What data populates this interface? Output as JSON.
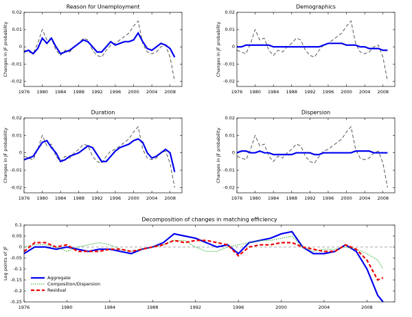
{
  "chart_data": [
    {
      "type": "line",
      "title": "Reason for Unemployment",
      "ylabel": "Changes in JF probability",
      "x": [
        1976,
        1977,
        1978,
        1979,
        1980,
        1981,
        1982,
        1983,
        1984,
        1985,
        1986,
        1987,
        1988,
        1989,
        1990,
        1991,
        1992,
        1993,
        1994,
        1995,
        1996,
        1997,
        1998,
        1999,
        2000,
        2001,
        2002,
        2003,
        2004,
        2005,
        2006,
        2007,
        2008,
        2009
      ],
      "xlim": [
        1976,
        2010.6
      ],
      "xticks": [
        1976,
        1980,
        1984,
        1988,
        1992,
        1996,
        2000,
        2004,
        2008
      ],
      "ylim": [
        -0.023,
        0.02
      ],
      "yticks": [
        -0.02,
        -0.01,
        0,
        0.01,
        0.02
      ],
      "series": [
        {
          "color": "#555555",
          "linestyle": "dashed",
          "linewidth": 1,
          "values": [
            -0.002,
            -0.003,
            -0.004,
            0.002,
            0.01,
            0.004,
            0.005,
            -0.002,
            -0.005,
            -0.002,
            -0.003,
            0.0,
            0.002,
            0.005,
            0.004,
            -0.002,
            -0.005,
            -0.006,
            -0.002,
            0.001,
            0.002,
            0.004,
            0.006,
            0.008,
            0.012,
            0.015,
            0.002,
            -0.003,
            -0.004,
            -0.003,
            0.0,
            0.001,
            -0.006,
            -0.02
          ]
        },
        {
          "color": "#0000ee",
          "linestyle": "solid",
          "linewidth": 2.2,
          "values": [
            -0.003,
            -0.002,
            -0.004,
            -0.001,
            0.005,
            0.002,
            0.005,
            0.0,
            -0.004,
            -0.003,
            -0.002,
            0.0,
            0.002,
            0.004,
            0.003,
            0.0,
            -0.003,
            -0.003,
            0.0,
            0.003,
            0.001,
            0.002,
            0.003,
            0.003,
            0.004,
            0.008,
            0.003,
            -0.001,
            -0.002,
            0.0,
            0.002,
            0.001,
            -0.001,
            -0.006
          ]
        }
      ]
    },
    {
      "type": "line",
      "title": "Demographics",
      "ylabel": "Changes in JF probability",
      "x": [
        1976,
        1977,
        1978,
        1979,
        1980,
        1981,
        1982,
        1983,
        1984,
        1985,
        1986,
        1987,
        1988,
        1989,
        1990,
        1991,
        1992,
        1993,
        1994,
        1995,
        1996,
        1997,
        1998,
        1999,
        2000,
        2001,
        2002,
        2003,
        2004,
        2005,
        2006,
        2007,
        2008,
        2009
      ],
      "xlim": [
        1976,
        2010.6
      ],
      "xticks": [
        1976,
        1980,
        1984,
        1988,
        1992,
        1996,
        2000,
        2004,
        2008
      ],
      "ylim": [
        -0.023,
        0.02
      ],
      "yticks": [
        -0.02,
        -0.01,
        0,
        0.01,
        0.02
      ],
      "series": [
        {
          "color": "#555555",
          "linestyle": "dashed",
          "linewidth": 1,
          "values": [
            -0.002,
            -0.003,
            -0.004,
            0.002,
            0.01,
            0.004,
            0.005,
            -0.002,
            -0.005,
            -0.002,
            -0.003,
            0.0,
            0.002,
            0.005,
            0.004,
            -0.002,
            -0.005,
            -0.006,
            -0.002,
            0.001,
            0.002,
            0.004,
            0.006,
            0.008,
            0.012,
            0.015,
            0.002,
            -0.003,
            -0.004,
            -0.003,
            0.0,
            0.001,
            -0.006,
            -0.02
          ]
        },
        {
          "color": "#0000ee",
          "linestyle": "solid",
          "linewidth": 2.2,
          "values": [
            0.0,
            0.0,
            0.001,
            0.001,
            0.001,
            0.001,
            0.001,
            0.001,
            0.0,
            0.0,
            0.0,
            0.0,
            0.0,
            0.0,
            0.0,
            0.0,
            0.0,
            0.0,
            0.0,
            0.001,
            0.002,
            0.002,
            0.002,
            0.002,
            0.001,
            0.001,
            0.001,
            0.0,
            0.0,
            -0.001,
            -0.001,
            -0.001,
            -0.002,
            -0.002
          ]
        }
      ]
    },
    {
      "type": "line",
      "title": "Duration",
      "ylabel": "Changes in JF probability",
      "x": [
        1976,
        1977,
        1978,
        1979,
        1980,
        1981,
        1982,
        1983,
        1984,
        1985,
        1986,
        1987,
        1988,
        1989,
        1990,
        1991,
        1992,
        1993,
        1994,
        1995,
        1996,
        1997,
        1998,
        1999,
        2000,
        2001,
        2002,
        2003,
        2004,
        2005,
        2006,
        2007,
        2008,
        2009
      ],
      "xlim": [
        1976,
        2010.6
      ],
      "xticks": [
        1976,
        1980,
        1984,
        1988,
        1992,
        1996,
        2000,
        2004,
        2008
      ],
      "ylim": [
        -0.023,
        0.02
      ],
      "yticks": [
        -0.02,
        -0.01,
        0,
        0.01,
        0.02
      ],
      "series": [
        {
          "color": "#555555",
          "linestyle": "dashed",
          "linewidth": 1,
          "values": [
            -0.002,
            -0.003,
            -0.004,
            0.002,
            0.01,
            0.004,
            0.005,
            -0.002,
            -0.005,
            -0.002,
            -0.003,
            0.0,
            0.002,
            0.005,
            0.004,
            -0.002,
            -0.005,
            -0.006,
            -0.002,
            0.001,
            0.002,
            0.004,
            0.006,
            0.008,
            0.012,
            0.015,
            0.002,
            -0.003,
            -0.004,
            -0.003,
            0.0,
            0.001,
            -0.006,
            -0.02
          ]
        },
        {
          "color": "#0000ee",
          "linestyle": "solid",
          "linewidth": 2.2,
          "values": [
            -0.004,
            -0.003,
            -0.002,
            0.002,
            0.006,
            0.007,
            0.003,
            0.0,
            -0.005,
            -0.004,
            -0.002,
            -0.001,
            0.0,
            0.002,
            0.004,
            0.003,
            -0.001,
            -0.005,
            -0.005,
            -0.002,
            0.001,
            0.003,
            0.004,
            0.005,
            0.007,
            0.008,
            0.006,
            0.0,
            -0.003,
            -0.002,
            0.0,
            0.002,
            0.0,
            -0.011
          ]
        }
      ]
    },
    {
      "type": "line",
      "title": "Dispersion",
      "ylabel": "Changes in JF probability",
      "x": [
        1976,
        1977,
        1978,
        1979,
        1980,
        1981,
        1982,
        1983,
        1984,
        1985,
        1986,
        1987,
        1988,
        1989,
        1990,
        1991,
        1992,
        1993,
        1994,
        1995,
        1996,
        1997,
        1998,
        1999,
        2000,
        2001,
        2002,
        2003,
        2004,
        2005,
        2006,
        2007,
        2008,
        2009
      ],
      "xlim": [
        1976,
        2010.6
      ],
      "xticks": [
        1976,
        1980,
        1984,
        1988,
        1992,
        1996,
        2000,
        2004,
        2008
      ],
      "ylim": [
        -0.023,
        0.02
      ],
      "yticks": [
        -0.02,
        -0.01,
        0,
        0.01,
        0.02
      ],
      "series": [
        {
          "color": "#555555",
          "linestyle": "dashed",
          "linewidth": 1,
          "values": [
            -0.002,
            -0.003,
            -0.004,
            0.002,
            0.01,
            0.004,
            0.005,
            -0.002,
            -0.005,
            -0.002,
            -0.003,
            0.0,
            0.002,
            0.005,
            0.004,
            -0.002,
            -0.005,
            -0.006,
            -0.002,
            0.001,
            0.002,
            0.004,
            0.006,
            0.008,
            0.012,
            0.015,
            0.002,
            -0.003,
            -0.004,
            -0.003,
            0.0,
            0.001,
            -0.006,
            -0.02
          ]
        },
        {
          "color": "#0000ee",
          "linestyle": "solid",
          "linewidth": 2.2,
          "values": [
            0.0,
            0.001,
            0.001,
            0.0,
            0.0,
            0.001,
            0.0,
            0.0,
            -0.001,
            -0.001,
            -0.001,
            -0.001,
            -0.001,
            0.0,
            0.0,
            0.0,
            0.0,
            -0.001,
            -0.001,
            0.0,
            0.0,
            0.0,
            0.0,
            0.0,
            0.0,
            0.0,
            0.001,
            0.001,
            0.001,
            0.001,
            0.0,
            0.0,
            0.0,
            0.0
          ]
        }
      ]
    },
    {
      "type": "line",
      "title": "Decomposition of changes in matching efficiency",
      "ylabel": "Log points of JF",
      "x": [
        1976,
        1977,
        1978,
        1979,
        1980,
        1981,
        1982,
        1983,
        1984,
        1985,
        1986,
        1987,
        1988,
        1989,
        1990,
        1991,
        1992,
        1993,
        1994,
        1995,
        1996,
        1997,
        1998,
        1999,
        2000,
        2001,
        2002,
        2003,
        2004,
        2005,
        2006,
        2007,
        2008,
        2009,
        2009.5
      ],
      "xlim": [
        1976,
        2010.6
      ],
      "xticks": [
        1976,
        1980,
        1984,
        1988,
        1992,
        1996,
        2000,
        2004,
        2008
      ],
      "ylim": [
        -0.25,
        0.1
      ],
      "yticks": [
        -0.25,
        -0.2,
        -0.15,
        -0.1,
        -0.05,
        0,
        0.05,
        0.1
      ],
      "reference_line": 0,
      "legend": "lower left",
      "series": [
        {
          "name": "Aggregate",
          "color": "#0000ee",
          "linestyle": "solid",
          "linewidth": 2.2,
          "values": [
            -0.03,
            0.0,
            0.0,
            -0.01,
            0.0,
            -0.01,
            -0.02,
            -0.01,
            -0.01,
            -0.02,
            -0.03,
            -0.01,
            0.0,
            0.02,
            0.06,
            0.05,
            0.04,
            0.02,
            0.0,
            0.01,
            -0.03,
            0.02,
            0.03,
            0.04,
            0.06,
            0.07,
            0.0,
            -0.03,
            -0.03,
            -0.02,
            0.01,
            -0.02,
            -0.1,
            -0.22,
            -0.25
          ]
        },
        {
          "name": "Composition/Dispersion",
          "color": "#22aa22",
          "linestyle": "dotted",
          "linewidth": 1,
          "values": [
            0.0,
            0.01,
            0.01,
            0.0,
            -0.02,
            0.0,
            0.01,
            0.02,
            0.01,
            -0.01,
            -0.02,
            -0.01,
            0.0,
            0.01,
            0.03,
            0.03,
            0.0,
            -0.02,
            -0.02,
            0.0,
            0.01,
            0.02,
            0.03,
            0.03,
            0.04,
            0.05,
            0.0,
            -0.02,
            -0.01,
            -0.01,
            0.0,
            -0.01,
            -0.03,
            -0.06,
            -0.1
          ]
        },
        {
          "name": "Residual",
          "color": "#ee0000",
          "linestyle": "dashed",
          "linewidth": 2.2,
          "values": [
            -0.02,
            0.02,
            0.02,
            0.0,
            0.01,
            -0.02,
            -0.02,
            -0.02,
            -0.01,
            -0.01,
            -0.02,
            -0.01,
            0.0,
            0.01,
            0.03,
            0.02,
            0.03,
            0.03,
            0.02,
            0.01,
            -0.04,
            0.0,
            0.01,
            0.01,
            0.02,
            0.02,
            0.0,
            -0.01,
            -0.02,
            -0.02,
            0.01,
            -0.01,
            -0.06,
            -0.15,
            -0.14
          ]
        }
      ]
    }
  ]
}
